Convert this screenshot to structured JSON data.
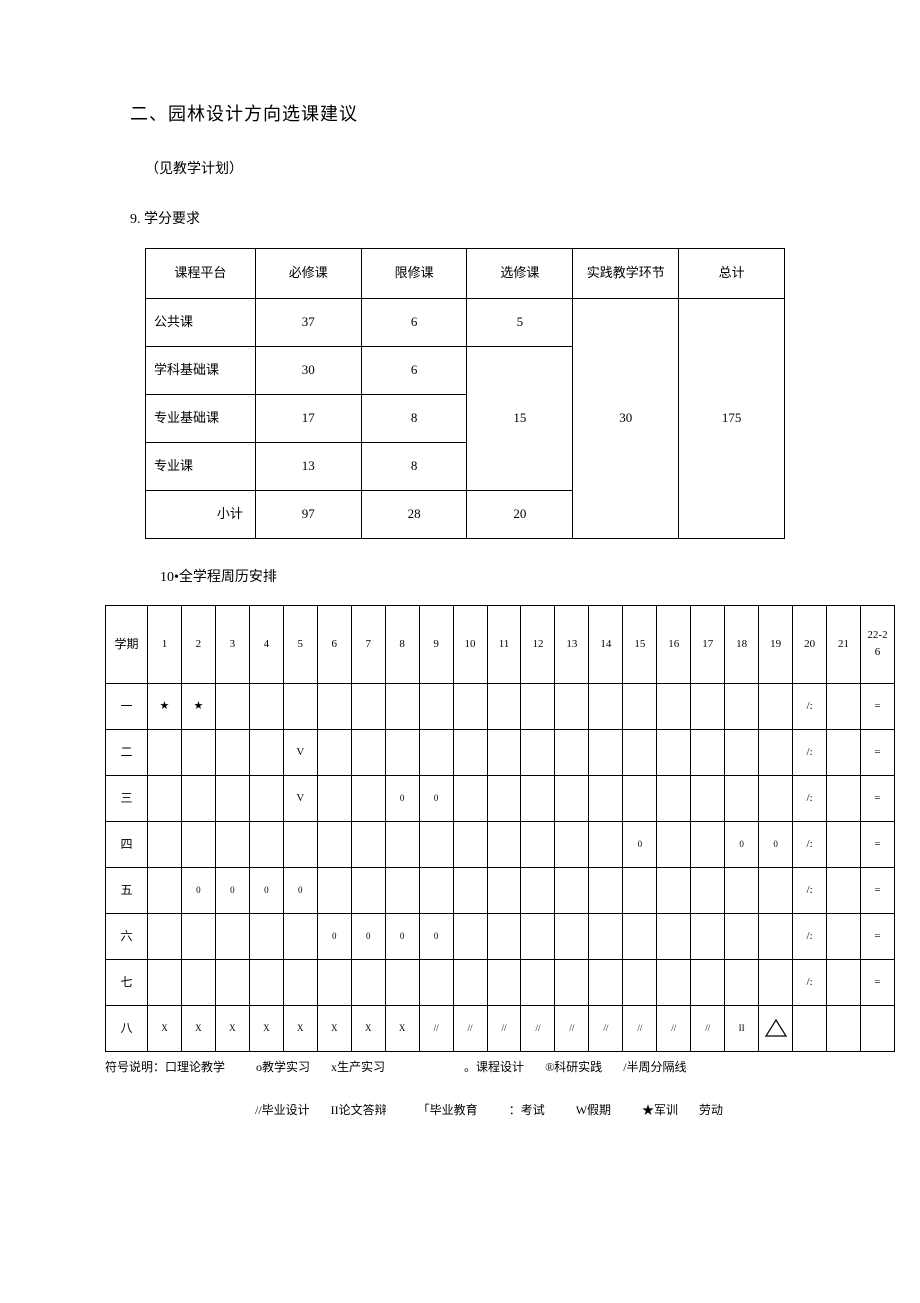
{
  "heading": "二、园林设计方向选课建议",
  "subnote": "（见教学计划）",
  "credits": {
    "section_label": "9. 学分要求",
    "headers": [
      "课程平台",
      "必修课",
      "限修课",
      "选修课",
      "实践教学环节",
      "总计"
    ],
    "rows": [
      {
        "label": "公共课",
        "required": "37",
        "limited": "6",
        "elective": "5"
      },
      {
        "label": "学科基础课",
        "required": "30",
        "limited": "6"
      },
      {
        "label": "专业基础课",
        "required": "17",
        "limited": "8"
      },
      {
        "label": "专业课",
        "required": "13",
        "limited": "8"
      }
    ],
    "elective_merged": "15",
    "practice": "30",
    "total": "175",
    "subtotal": {
      "label": "小计",
      "required": "97",
      "limited": "28",
      "elective": "20"
    }
  },
  "schedule": {
    "section_label": "10•全学程周历安排",
    "header_term": "学期",
    "weeks": [
      "1",
      "2",
      "3",
      "4",
      "5",
      "6",
      "7",
      "8",
      "9",
      "10",
      "11",
      "12",
      "13",
      "14",
      "15",
      "16",
      "17",
      "18",
      "19",
      "20",
      "21",
      "22-2\n6"
    ],
    "rows": [
      {
        "term": "一",
        "cells": [
          "★",
          "★",
          "",
          "",
          "",
          "",
          "",
          "",
          "",
          "",
          "",
          "",
          "",
          "",
          "",
          "",
          "",
          "",
          "",
          "/:",
          "",
          "="
        ]
      },
      {
        "term": "二",
        "cells": [
          "",
          "",
          "",
          "",
          "V",
          "",
          "",
          "",
          "",
          "",
          "",
          "",
          "",
          "",
          "",
          "",
          "",
          "",
          "",
          "/:",
          "",
          "="
        ]
      },
      {
        "term": "三",
        "cells": [
          "",
          "",
          "",
          "",
          "V",
          "",
          "",
          "0",
          "0",
          "",
          "",
          "",
          "",
          "",
          "",
          "",
          "",
          "",
          "",
          "/:",
          "",
          "="
        ]
      },
      {
        "term": "四",
        "cells": [
          "",
          "",
          "",
          "",
          "",
          "",
          "",
          "",
          "",
          "",
          "",
          "",
          "",
          "",
          "0",
          "",
          "",
          "0",
          "0",
          "/:",
          "",
          "="
        ]
      },
      {
        "term": "五",
        "cells": [
          "",
          "0",
          "0",
          "0",
          "0",
          "",
          "",
          "",
          "",
          "",
          "",
          "",
          "",
          "",
          "",
          "",
          "",
          "",
          "",
          "/:",
          "",
          "="
        ]
      },
      {
        "term": "六",
        "cells": [
          "",
          "",
          "",
          "",
          "",
          "0",
          "0",
          "0",
          "0",
          "",
          "",
          "",
          "",
          "",
          "",
          "",
          "",
          "",
          "",
          "/:",
          "",
          "="
        ]
      },
      {
        "term": "七",
        "cells": [
          "",
          "",
          "",
          "",
          "",
          "",
          "",
          "",
          "",
          "",
          "",
          "",
          "",
          "",
          "",
          "",
          "",
          "",
          "",
          "/:",
          "",
          "="
        ]
      },
      {
        "term": "八",
        "cells": [
          "X",
          "X",
          "X",
          "X",
          "X",
          "X",
          "X",
          "X",
          "//",
          "//",
          "//",
          "//",
          "//",
          "//",
          "//",
          "//",
          "//",
          "II",
          "△",
          ""
        ]
      }
    ]
  },
  "legend": {
    "line1_a": "符号说明：口理论教学",
    "line1_b": "o教学实习",
    "line1_c": "x生产实习",
    "line1_d": "。课程设计",
    "line1_e": "®科研实践",
    "line1_f": "/半周分隔线",
    "line2_a": "//毕业设计",
    "line2_b": "II论文答辩",
    "line2_c": "「毕业教育",
    "line2_d": "：考试",
    "line2_e": "W假期",
    "line2_f": "★军训",
    "line2_g": "劳动"
  },
  "style": {
    "colors": {
      "bg": "#ffffff",
      "text": "#000000",
      "border": "#000000"
    },
    "fontsizes": {
      "heading": 18,
      "body": 14,
      "table": 13,
      "schedule": 11,
      "legend": 12
    }
  }
}
